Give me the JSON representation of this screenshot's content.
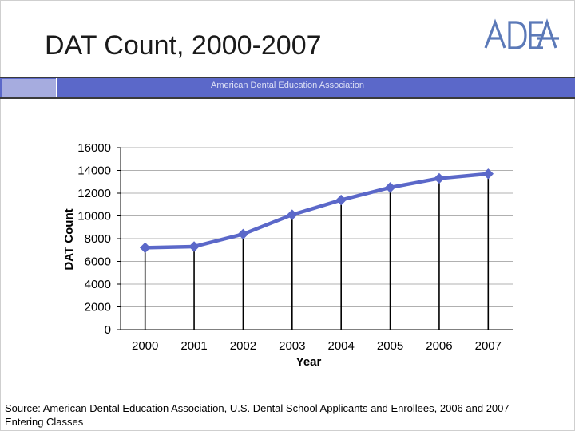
{
  "slide": {
    "title": "DAT Count, 2000-2007",
    "logo_text": "ADEA",
    "band_text": "American Dental Education Association",
    "source": "Source: American Dental Education Association, U.S. Dental School Applicants and Enrollees, 2006 and 2007 Entering Classes"
  },
  "colors": {
    "band": "#5b68c9",
    "band_light": "#a6acdf",
    "series_line": "#5b68c9",
    "drop_lines": "#000000",
    "logo": "#5b79b8"
  },
  "chart_data": {
    "type": "line",
    "title": "",
    "xlabel": "Year",
    "ylabel": "DAT Count",
    "categories": [
      "2000",
      "2001",
      "2002",
      "2003",
      "2004",
      "2005",
      "2006",
      "2007"
    ],
    "series": [
      {
        "values": [
          7200,
          7300,
          8400,
          10100,
          11400,
          12500,
          13300,
          13700
        ]
      }
    ],
    "ylim": [
      0,
      16000
    ],
    "yticks": [
      "0",
      "2000",
      "4000",
      "6000",
      "8000",
      "10000",
      "12000",
      "14000",
      "16000"
    ],
    "grid": true,
    "drop_lines": true,
    "legend": "none"
  }
}
